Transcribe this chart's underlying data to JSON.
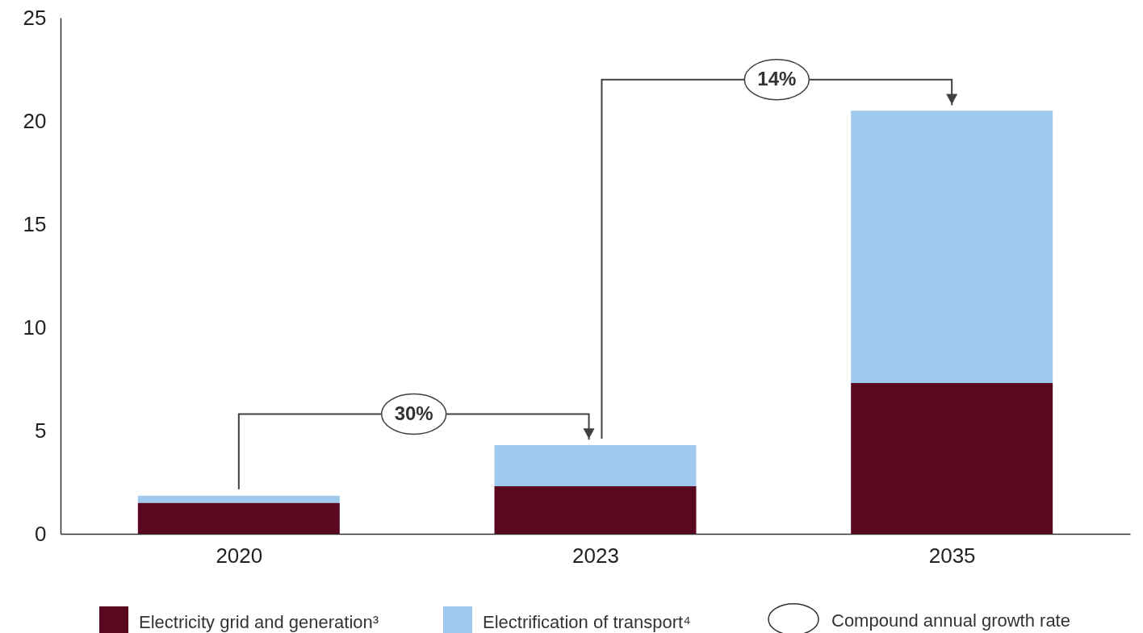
{
  "chart_data": {
    "type": "bar",
    "stacked": true,
    "categories": [
      "2020",
      "2023",
      "2035"
    ],
    "series": [
      {
        "name": "Electricity grid and generation³",
        "color": "#5a0820",
        "values": [
          1.5,
          2.3,
          7.3
        ]
      },
      {
        "name": "Electrification of transport⁴",
        "color": "#a0caed",
        "values": [
          0.35,
          2.0,
          13.2
        ]
      }
    ],
    "ylim": [
      0,
      25
    ],
    "yticks": [
      0,
      5,
      10,
      15,
      20,
      25
    ],
    "grid": false,
    "legend": "bottom",
    "annotations": [
      "30%",
      "14%",
      "Compound annual growth rate"
    ]
  }
}
